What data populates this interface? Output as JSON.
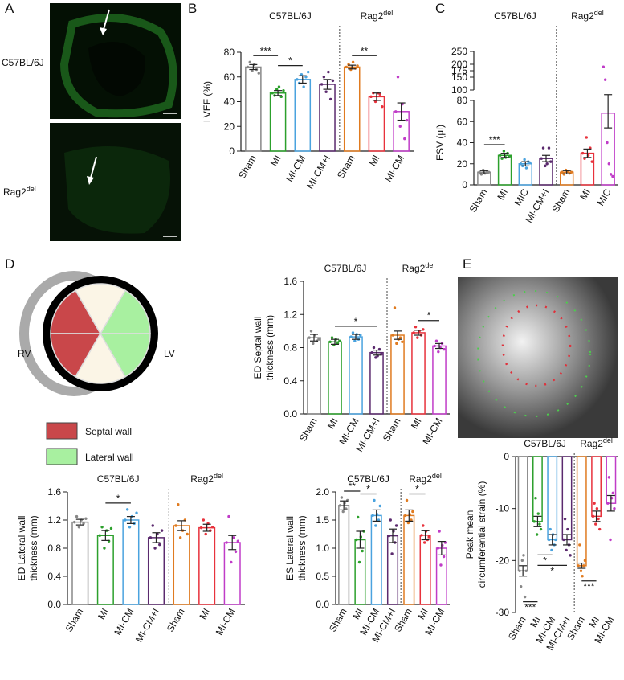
{
  "figure": {
    "panels": [
      "A",
      "B",
      "C",
      "D",
      "E"
    ],
    "microscopy": [
      {
        "label": "C57BL/6J"
      },
      {
        "label": {
          "text": "Rag2",
          "sup": "del"
        }
      }
    ],
    "heart_diagram": {
      "left": "RV",
      "right": "LV",
      "legend": [
        "Septal wall",
        "Lateral wall"
      ]
    }
  },
  "chart_data": [
    {
      "type": "bar",
      "ylabel": "LVEF (%)",
      "ylim": [
        0,
        80
      ],
      "yticks": [
        0,
        20,
        40,
        60,
        80
      ],
      "groups": [
        {
          "name": "C57BL/6J",
          "categories": [
            "Sham",
            "MI",
            "MI-CM",
            "MI-CM+I"
          ],
          "values": [
            68,
            47,
            58,
            54
          ],
          "errors": [
            2,
            2,
            3,
            4
          ],
          "colors": [
            "#888888",
            "#2ca02c",
            "#4aa3df",
            "#5b2a6e"
          ],
          "points": [
            [
              68,
              72,
              65,
              70,
              66,
              63
            ],
            [
              47,
              45,
              50,
              52,
              44,
              49
            ],
            [
              58,
              55,
              62,
              52,
              60,
              64
            ],
            [
              54,
              60,
              48,
              64,
              42,
              57
            ]
          ]
        },
        {
          "name": {
            "text": "Rag2",
            "sup": "del"
          },
          "categories": [
            "Sham",
            "MI",
            "MI-CM"
          ],
          "values": [
            68,
            44,
            32
          ],
          "errors": [
            1.5,
            3,
            7
          ],
          "colors": [
            "#e07b20",
            "#e8323c",
            "#c03cc8"
          ],
          "points": [
            [
              68,
              70,
              66,
              72,
              67,
              69
            ],
            [
              44,
              47,
              40,
              47,
              46,
              36
            ],
            [
              32,
              60,
              20,
              38,
              10,
              25
            ]
          ]
        }
      ],
      "significance": [
        {
          "group": 0,
          "bars": [
            0,
            1
          ],
          "label": "***"
        },
        {
          "group": 0,
          "bars": [
            1,
            2
          ],
          "label": "*"
        },
        {
          "group": 1,
          "bars": [
            0,
            1
          ],
          "label": "**"
        }
      ]
    },
    {
      "type": "bar",
      "ylabel": "ESV (µl)",
      "ylim": [
        0,
        80
      ],
      "yticks": [
        0,
        20,
        40,
        60,
        80
      ],
      "ylim_upper": [
        100,
        250
      ],
      "yticks_upper": [
        100,
        150,
        175,
        200,
        250
      ],
      "groups": [
        {
          "name": "C57BL/6J",
          "categories": [
            "Sham",
            "MI",
            "MIC",
            "MI-CM+I"
          ],
          "values": [
            12,
            28,
            20,
            25
          ],
          "errors": [
            1.5,
            2,
            2,
            3
          ],
          "colors": [
            "#888888",
            "#2ca02c",
            "#4aa3df",
            "#5b2a6e"
          ],
          "points": [
            [
              12,
              10,
              14,
              11,
              13,
              12
            ],
            [
              28,
              25,
              32,
              26,
              30,
              27
            ],
            [
              20,
              18,
              24,
              16,
              22,
              21
            ],
            [
              25,
              35,
              18,
              20,
              35,
              22
            ]
          ]
        },
        {
          "name": {
            "text": "Rag2",
            "sup": "del"
          },
          "categories": [
            "Sham",
            "MI",
            "MIC"
          ],
          "values": [
            12,
            30,
            68
          ],
          "errors": [
            1.5,
            4,
            14
          ],
          "colors": [
            "#e07b20",
            "#e8323c",
            "#c03cc8"
          ],
          "points": [
            [
              12,
              10,
              14,
              13,
              11,
              12
            ],
            [
              30,
              25,
              45,
              28,
              35,
              22
            ],
            [
              190,
              140,
              40,
              20,
              10,
              8
            ]
          ]
        }
      ],
      "significance": [
        {
          "group": 0,
          "bars": [
            0,
            1
          ],
          "label": "***"
        }
      ]
    },
    {
      "type": "bar",
      "ylabel": [
        "ED Septal wall",
        "thickness (mm)"
      ],
      "ylim": [
        0,
        1.6
      ],
      "yticks": [
        {
          "value": 0,
          "label": "0.0"
        },
        0.4,
        0.8,
        1.2,
        1.6
      ],
      "groups": [
        {
          "name": "C57BL/6J",
          "categories": [
            "Sham",
            "MI",
            "MI-CM",
            "MI-CM+I"
          ],
          "values": [
            0.92,
            0.87,
            0.93,
            0.74
          ],
          "errors": [
            0.04,
            0.03,
            0.03,
            0.03
          ],
          "colors": [
            "#888888",
            "#2ca02c",
            "#4aa3df",
            "#5b2a6e"
          ],
          "points": [
            [
              0.92,
              1.0,
              0.85,
              0.95,
              0.88,
              0.9
            ],
            [
              0.87,
              0.92,
              0.83,
              0.9,
              0.85,
              0.88
            ],
            [
              0.93,
              0.98,
              0.88,
              0.96,
              0.9,
              0.95
            ],
            [
              0.74,
              0.8,
              0.68,
              0.7,
              0.78,
              0.72
            ]
          ]
        },
        {
          "name": {
            "text": "Rag2",
            "sup": "del"
          },
          "categories": [
            "Sham",
            "MI",
            "MI-CM"
          ],
          "values": [
            0.95,
            0.98,
            0.82
          ],
          "errors": [
            0.05,
            0.03,
            0.03
          ],
          "colors": [
            "#e07b20",
            "#e8323c",
            "#c03cc8"
          ],
          "points": [
            [
              0.95,
              1.28,
              0.85,
              0.9,
              0.92,
              0.87
            ],
            [
              0.98,
              1.05,
              0.92,
              1.0,
              0.95,
              1.02
            ],
            [
              0.82,
              0.88,
              0.75,
              0.8,
              0.85,
              0.78
            ]
          ]
        }
      ],
      "significance": [
        {
          "group": 0,
          "bars": [
            1,
            3
          ],
          "label": "*"
        },
        {
          "group": 1,
          "bars": [
            1,
            2
          ],
          "label": "*"
        }
      ]
    },
    {
      "type": "bar",
      "ylabel": [
        "ED Lateral wall",
        "thickness (mm)"
      ],
      "ylim": [
        0,
        1.6
      ],
      "yticks": [
        {
          "value": 0,
          "label": "0.0"
        },
        0.4,
        0.8,
        1.2,
        1.6
      ],
      "groups": [
        {
          "name": "C57BL/6J",
          "categories": [
            "Sham",
            "MI",
            "MI-CM",
            "MI-CM+I"
          ],
          "values": [
            1.17,
            0.98,
            1.2,
            0.95
          ],
          "errors": [
            0.04,
            0.07,
            0.05,
            0.07
          ],
          "colors": [
            "#888888",
            "#2ca02c",
            "#4aa3df",
            "#5b2a6e"
          ],
          "points": [
            [
              1.17,
              1.25,
              1.1,
              1.2,
              1.15,
              1.22
            ],
            [
              0.98,
              1.1,
              0.8,
              1.05,
              0.9,
              1.08
            ],
            [
              1.2,
              1.35,
              1.1,
              1.25,
              1.15,
              1.3
            ],
            [
              0.95,
              1.12,
              0.8,
              1.0,
              0.85,
              1.05
            ]
          ]
        },
        {
          "name": {
            "text": "Rag2",
            "sup": "del"
          },
          "categories": [
            "Sham",
            "MI",
            "MI-CM"
          ],
          "values": [
            1.12,
            1.09,
            0.88
          ],
          "errors": [
            0.07,
            0.05,
            0.1
          ],
          "colors": [
            "#e07b20",
            "#e8323c",
            "#c03cc8"
          ],
          "points": [
            [
              1.12,
              1.42,
              0.95,
              1.05,
              1.2,
              1.0
            ],
            [
              1.09,
              1.2,
              1.0,
              1.15,
              1.05,
              1.1
            ],
            [
              0.88,
              1.25,
              0.6,
              0.95,
              0.75,
              0.9
            ]
          ]
        }
      ],
      "significance": [
        {
          "group": 0,
          "bars": [
            1,
            2
          ],
          "label": "*"
        }
      ]
    },
    {
      "type": "bar",
      "ylabel": [
        "ES Lateral wall",
        "thickness (mm)"
      ],
      "ylim": [
        0,
        2
      ],
      "yticks": [
        {
          "value": 0,
          "label": "0.0"
        },
        0.5,
        {
          "value": 1,
          "label": "1.0"
        },
        1.5,
        {
          "value": 2,
          "label": "2.0"
        }
      ],
      "groups": [
        {
          "name": "C57BL/6J",
          "categories": [
            "Sham",
            "MI",
            "MI-CM",
            "MI-CM+I"
          ],
          "values": [
            1.76,
            1.15,
            1.58,
            1.22
          ],
          "errors": [
            0.08,
            0.15,
            0.1,
            0.12
          ],
          "colors": [
            "#888888",
            "#2ca02c",
            "#4aa3df",
            "#5b2a6e"
          ],
          "points": [
            [
              1.76,
              1.9,
              1.65,
              1.8,
              1.7,
              1.85
            ],
            [
              1.15,
              1.55,
              0.75,
              1.2,
              0.95,
              1.3
            ],
            [
              1.58,
              1.85,
              1.4,
              1.6,
              1.5,
              1.75
            ],
            [
              1.22,
              1.5,
              0.9,
              1.3,
              1.1,
              1.4
            ]
          ]
        },
        {
          "name": {
            "text": "Rag2",
            "sup": "del"
          },
          "categories": [
            "Sham",
            "MI",
            "MI-CM"
          ],
          "values": [
            1.58,
            1.23,
            1.0
          ],
          "errors": [
            0.1,
            0.08,
            0.12
          ],
          "colors": [
            "#e07b20",
            "#e8323c",
            "#c03cc8"
          ],
          "points": [
            [
              1.58,
              1.85,
              1.45,
              1.6,
              1.5,
              1.65
            ],
            [
              1.23,
              1.4,
              1.1,
              1.3,
              1.15,
              1.2
            ],
            [
              1.0,
              1.3,
              0.7,
              1.05,
              0.85,
              1.1
            ]
          ]
        }
      ],
      "significance": [
        {
          "group": 0,
          "bars": [
            0,
            1
          ],
          "label": "**"
        },
        {
          "group": 0,
          "bars": [
            1,
            2
          ],
          "label": "*"
        },
        {
          "group": 1,
          "bars": [
            0,
            1
          ],
          "label": "*"
        }
      ]
    },
    {
      "type": "bar",
      "ylabel": [
        "Peak mean",
        "circumferential strain  (%)"
      ],
      "ylim": [
        -30,
        0
      ],
      "yticks": [
        0,
        -10,
        -20,
        -30
      ],
      "groups": [
        {
          "name": "C57BL/6J",
          "categories": [
            "Sham",
            "MI",
            "MI-CM",
            "MI-CM+I"
          ],
          "values": [
            -22,
            -12.5,
            -16,
            -16
          ],
          "errors": [
            1,
            1,
            1,
            1
          ],
          "colors": [
            "#888888",
            "#2ca02c",
            "#4aa3df",
            "#5b2a6e"
          ],
          "points": [
            [
              -22,
              -25,
              -20,
              -19,
              -27,
              -22
            ],
            [
              -12.5,
              -8,
              -15,
              -11,
              -13,
              -14
            ],
            [
              -16,
              -14,
              -18,
              -15,
              -17,
              -16
            ],
            [
              -16,
              -12,
              -18,
              -14,
              -17,
              -19
            ]
          ]
        },
        {
          "name": {
            "text": "Rag2",
            "sup": "del"
          },
          "categories": [
            "Sham",
            "MI",
            "MI-CM"
          ],
          "values": [
            -21,
            -11.5,
            -9
          ],
          "errors": [
            0.5,
            1,
            1.5
          ],
          "colors": [
            "#e07b20",
            "#e8323c",
            "#c03cc8"
          ],
          "points": [
            [
              -21,
              -17,
              -22,
              -23,
              -21,
              -20
            ],
            [
              -11.5,
              -9,
              -13,
              -10,
              -12,
              -14
            ],
            [
              -9,
              -4,
              -16,
              -8,
              -7,
              -10
            ]
          ]
        }
      ],
      "significance": [
        {
          "group": 0,
          "bars": [
            0,
            1
          ],
          "label": "***"
        },
        {
          "group": 0,
          "bars": [
            1,
            2
          ],
          "label": "*"
        },
        {
          "group": 0,
          "bars": [
            1,
            3
          ],
          "label": "*"
        },
        {
          "group": 1,
          "bars": [
            0,
            1
          ],
          "label": "***"
        }
      ]
    }
  ]
}
